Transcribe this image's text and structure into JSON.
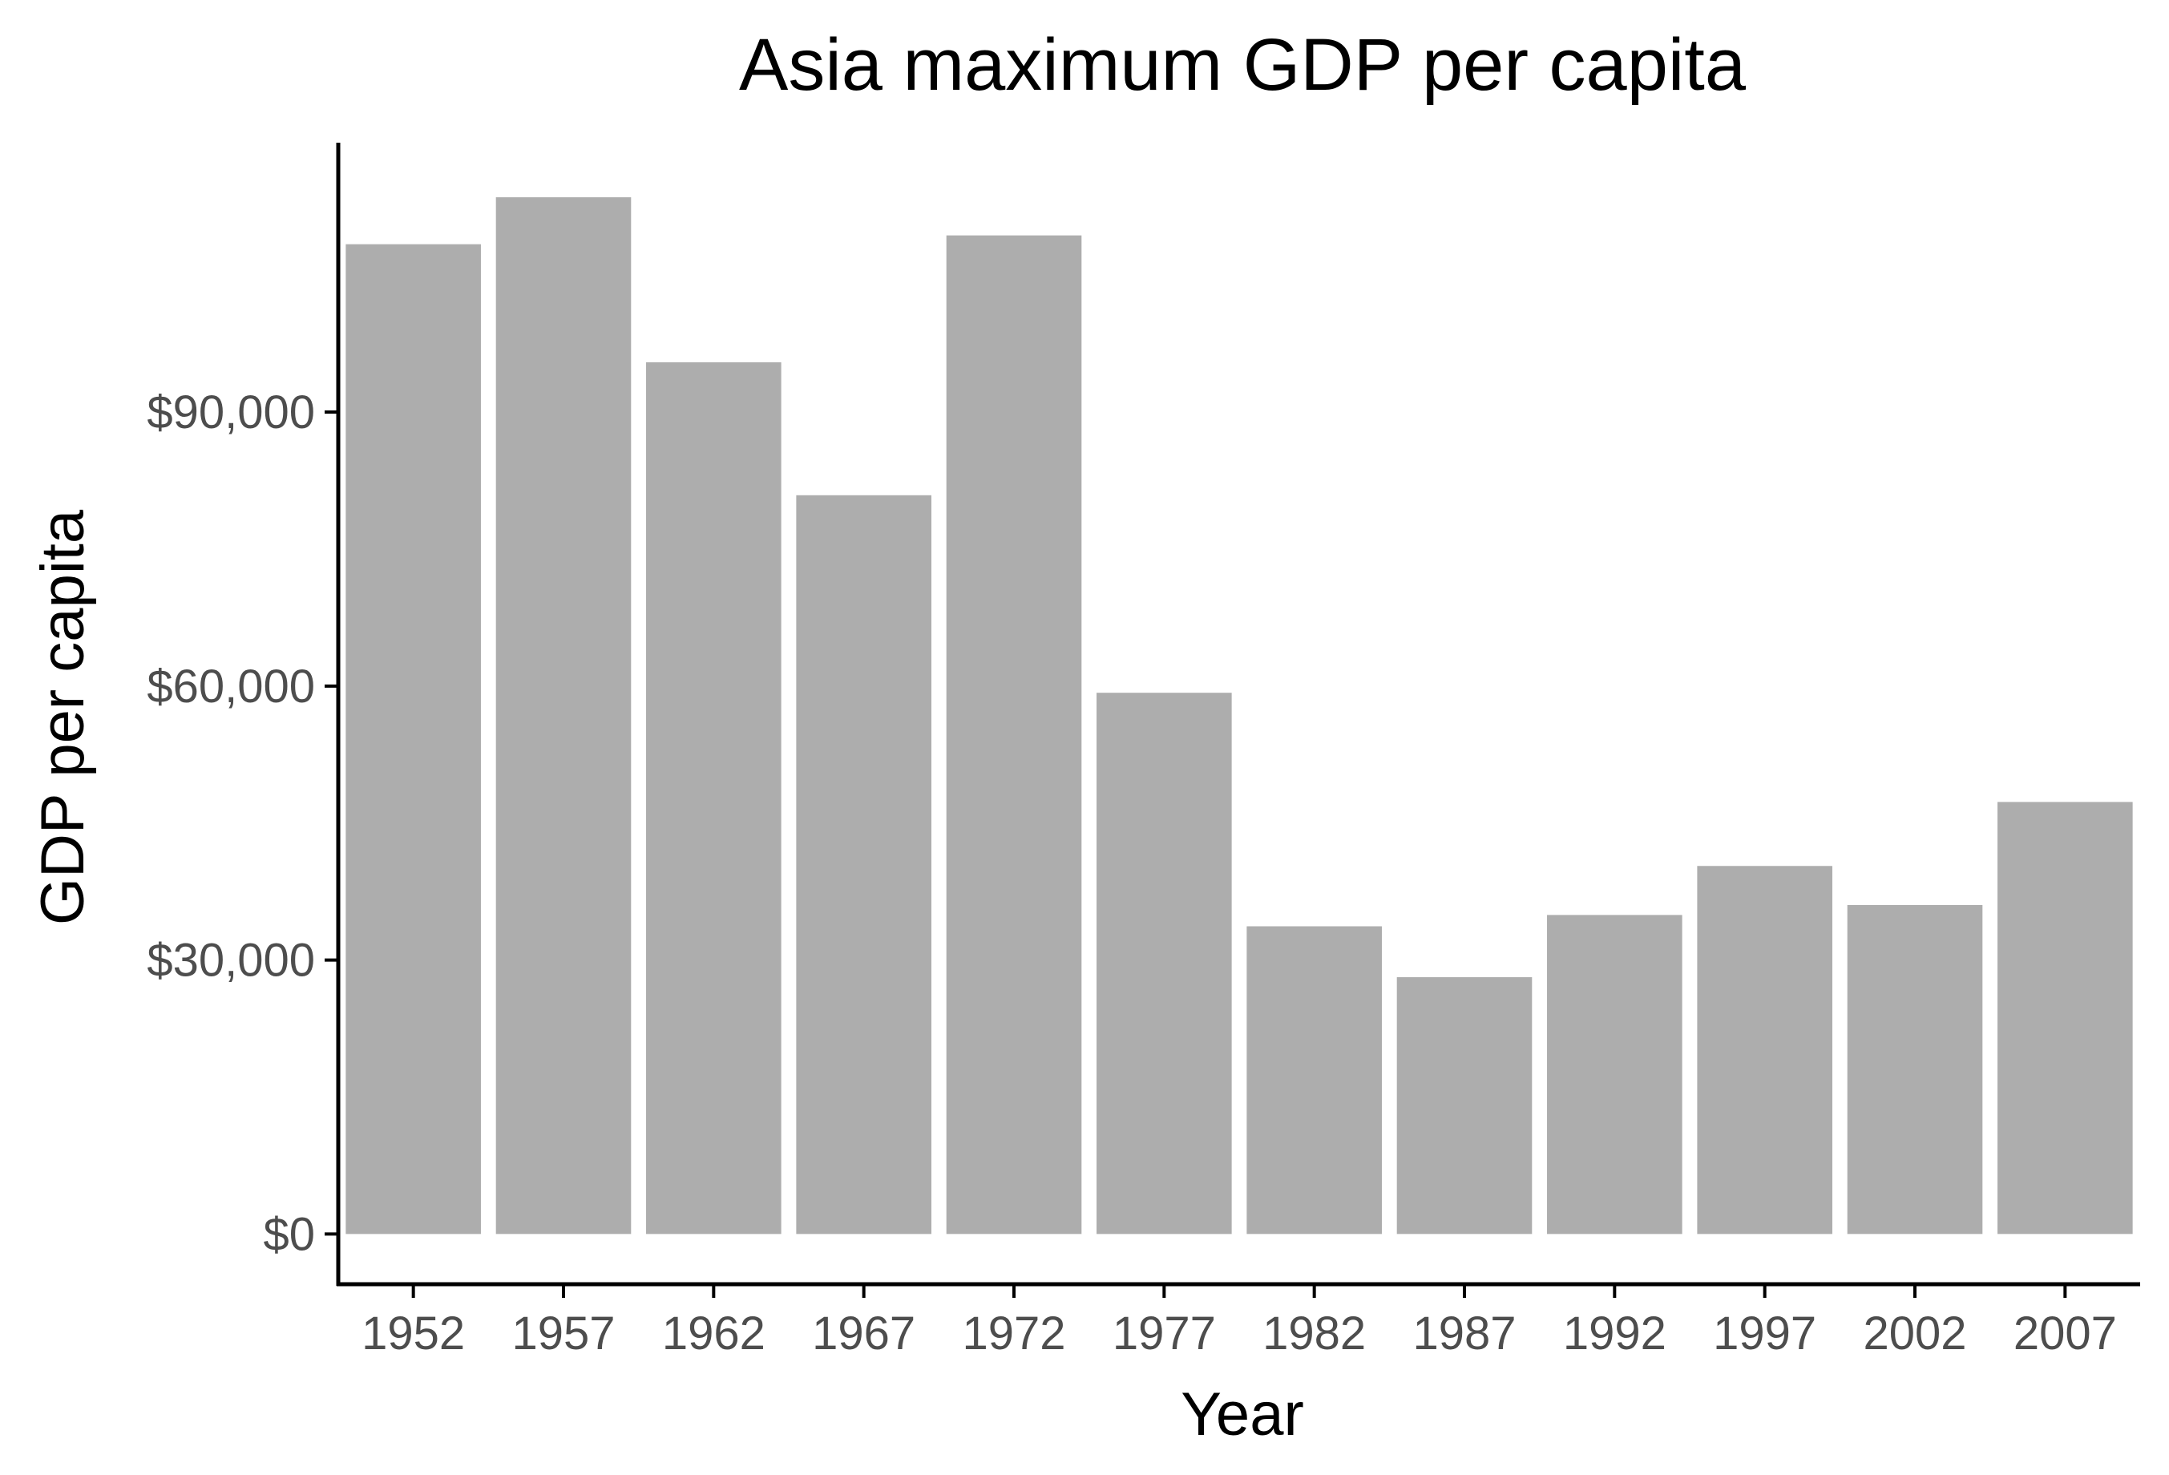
{
  "chart_data": {
    "type": "bar",
    "title": "Asia maximum GDP per capita",
    "xlabel": "Year",
    "ylabel": "GDP per capita",
    "categories": [
      "1952",
      "1957",
      "1962",
      "1967",
      "1972",
      "1977",
      "1982",
      "1987",
      "1992",
      "1997",
      "2002",
      "2007"
    ],
    "values": [
      108382,
      113523,
      95458,
      80895,
      109348,
      59265,
      33693,
      28118,
      34933,
      40300,
      36023,
      47307
    ],
    "ylim": [
      -5500,
      119500
    ],
    "y_ticks": [
      0,
      30000,
      60000,
      90000
    ],
    "y_tick_labels": [
      "$0",
      "$30,000",
      "$60,000",
      "$90,000"
    ],
    "grid": false,
    "legend": "none",
    "colors": {
      "bar": "#adadad",
      "axis": "#000000",
      "tick_text": "#4d4d4d",
      "title_text": "#000000"
    }
  }
}
